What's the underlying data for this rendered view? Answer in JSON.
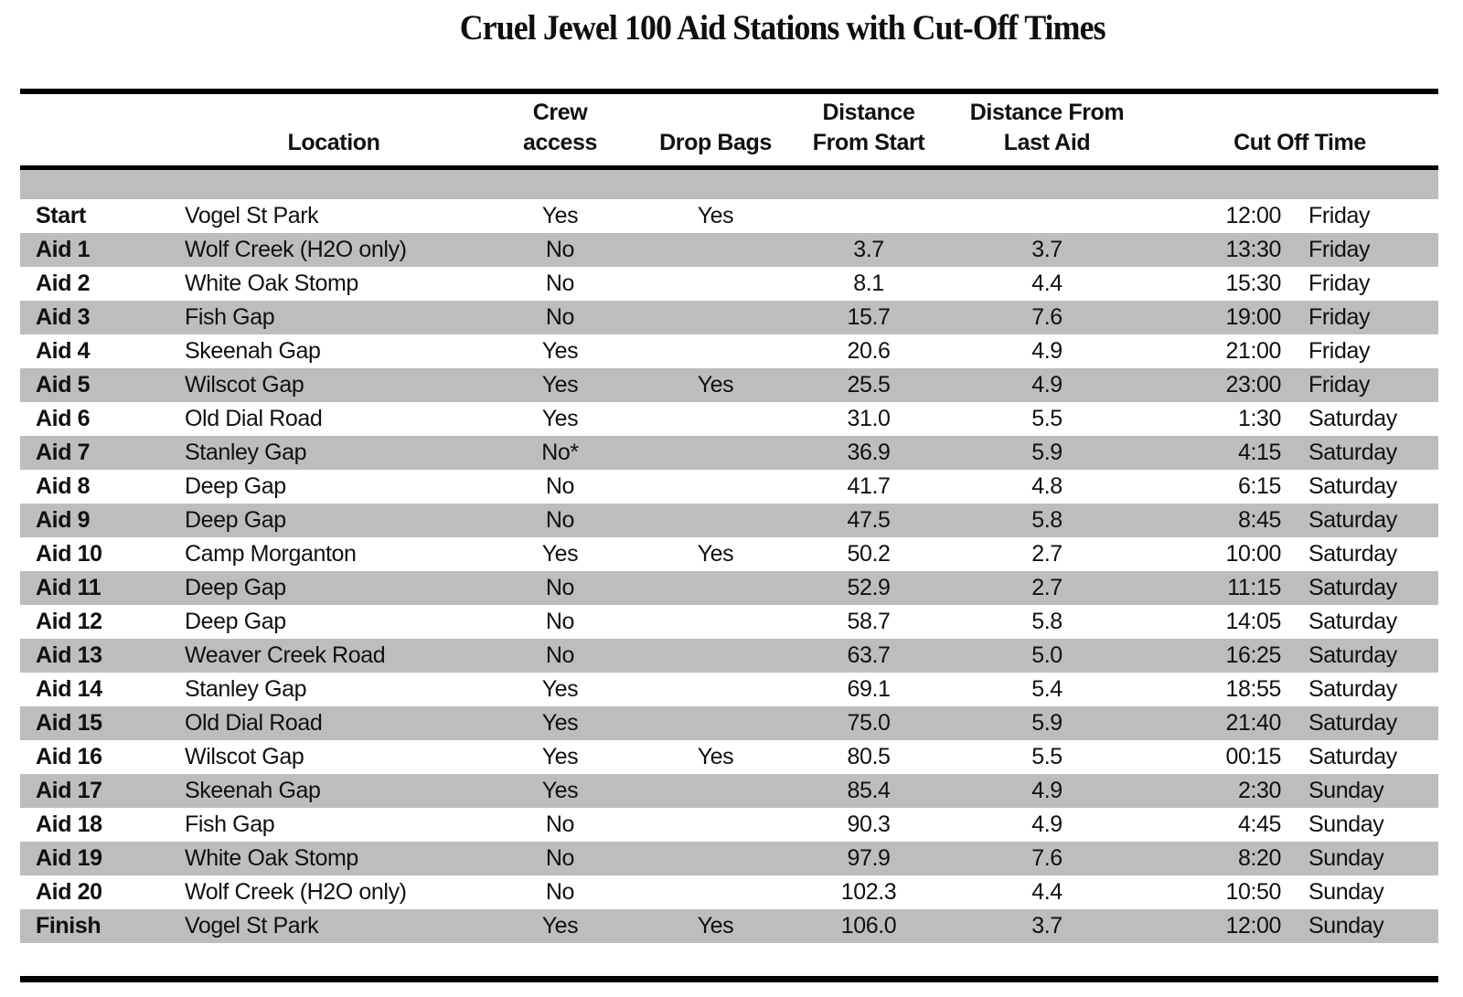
{
  "title": "Cruel Jewel 100 Aid Stations with Cut-Off Times",
  "colors": {
    "band_gray": "#bdbdbd",
    "rule_black": "#000000",
    "text": "#111111"
  },
  "table": {
    "header": {
      "location": "Location",
      "crew_line1": "Crew",
      "crew_line2": "access",
      "drop_bags": "Drop Bags",
      "dist_start_line1": "Distance",
      "dist_start_line2": "From Start",
      "dist_last_line1": "Distance From",
      "dist_last_line2": "Last Aid",
      "cutoff": "Cut Off Time"
    },
    "rows": [
      {
        "station": "Start",
        "location": "Vogel St Park",
        "crew": "Yes",
        "drop": "Yes",
        "dist_start": "",
        "dist_last": "",
        "time": "12:00",
        "day": "Friday"
      },
      {
        "station": "Aid 1",
        "location": "Wolf Creek (H2O only)",
        "crew": "No",
        "drop": "",
        "dist_start": "3.7",
        "dist_last": "3.7",
        "time": "13:30",
        "day": "Friday"
      },
      {
        "station": "Aid 2",
        "location": "White Oak Stomp",
        "crew": "No",
        "drop": "",
        "dist_start": "8.1",
        "dist_last": "4.4",
        "time": "15:30",
        "day": "Friday"
      },
      {
        "station": "Aid 3",
        "location": "Fish Gap",
        "crew": "No",
        "drop": "",
        "dist_start": "15.7",
        "dist_last": "7.6",
        "time": "19:00",
        "day": "Friday"
      },
      {
        "station": "Aid 4",
        "location": "Skeenah Gap",
        "crew": "Yes",
        "drop": "",
        "dist_start": "20.6",
        "dist_last": "4.9",
        "time": "21:00",
        "day": "Friday"
      },
      {
        "station": "Aid 5",
        "location": "Wilscot Gap",
        "crew": "Yes",
        "drop": "Yes",
        "dist_start": "25.5",
        "dist_last": "4.9",
        "time": "23:00",
        "day": "Friday"
      },
      {
        "station": "Aid 6",
        "location": "Old Dial Road",
        "crew": "Yes",
        "drop": "",
        "dist_start": "31.0",
        "dist_last": "5.5",
        "time": "1:30",
        "day": "Saturday"
      },
      {
        "station": "Aid 7",
        "location": "Stanley Gap",
        "crew": "No*",
        "drop": "",
        "dist_start": "36.9",
        "dist_last": "5.9",
        "time": "4:15",
        "day": "Saturday"
      },
      {
        "station": "Aid 8",
        "location": "Deep Gap",
        "crew": "No",
        "drop": "",
        "dist_start": "41.7",
        "dist_last": "4.8",
        "time": "6:15",
        "day": "Saturday"
      },
      {
        "station": "Aid 9",
        "location": "Deep Gap",
        "crew": "No",
        "drop": "",
        "dist_start": "47.5",
        "dist_last": "5.8",
        "time": "8:45",
        "day": "Saturday"
      },
      {
        "station": "Aid 10",
        "location": "Camp Morganton",
        "crew": "Yes",
        "drop": "Yes",
        "dist_start": "50.2",
        "dist_last": "2.7",
        "time": "10:00",
        "day": "Saturday"
      },
      {
        "station": "Aid 11",
        "location": "Deep Gap",
        "crew": "No",
        "drop": "",
        "dist_start": "52.9",
        "dist_last": "2.7",
        "time": "11:15",
        "day": "Saturday"
      },
      {
        "station": "Aid 12",
        "location": "Deep Gap",
        "crew": "No",
        "drop": "",
        "dist_start": "58.7",
        "dist_last": "5.8",
        "time": "14:05",
        "day": "Saturday"
      },
      {
        "station": "Aid 13",
        "location": "Weaver Creek Road",
        "crew": "No",
        "drop": "",
        "dist_start": "63.7",
        "dist_last": "5.0",
        "time": "16:25",
        "day": "Saturday"
      },
      {
        "station": "Aid 14",
        "location": "Stanley Gap",
        "crew": "Yes",
        "drop": "",
        "dist_start": "69.1",
        "dist_last": "5.4",
        "time": "18:55",
        "day": "Saturday"
      },
      {
        "station": "Aid 15",
        "location": "Old Dial Road",
        "crew": "Yes",
        "drop": "",
        "dist_start": "75.0",
        "dist_last": "5.9",
        "time": "21:40",
        "day": "Saturday"
      },
      {
        "station": "Aid 16",
        "location": "Wilscot Gap",
        "crew": "Yes",
        "drop": "Yes",
        "dist_start": "80.5",
        "dist_last": "5.5",
        "time": "00:15",
        "day": "Saturday"
      },
      {
        "station": "Aid 17",
        "location": "Skeenah Gap",
        "crew": "Yes",
        "drop": "",
        "dist_start": "85.4",
        "dist_last": "4.9",
        "time": "2:30",
        "day": "Sunday"
      },
      {
        "station": "Aid 18",
        "location": "Fish Gap",
        "crew": "No",
        "drop": "",
        "dist_start": "90.3",
        "dist_last": "4.9",
        "time": "4:45",
        "day": "Sunday"
      },
      {
        "station": "Aid 19",
        "location": "White Oak Stomp",
        "crew": "No",
        "drop": "",
        "dist_start": "97.9",
        "dist_last": "7.6",
        "time": "8:20",
        "day": "Sunday"
      },
      {
        "station": "Aid 20",
        "location": "Wolf Creek (H2O only)",
        "crew": "No",
        "drop": "",
        "dist_start": "102.3",
        "dist_last": "4.4",
        "time": "10:50",
        "day": "Sunday"
      },
      {
        "station": "Finish",
        "location": "Vogel St Park",
        "crew": "Yes",
        "drop": "Yes",
        "dist_start": "106.0",
        "dist_last": "3.7",
        "time": "12:00",
        "day": "Sunday"
      }
    ]
  }
}
